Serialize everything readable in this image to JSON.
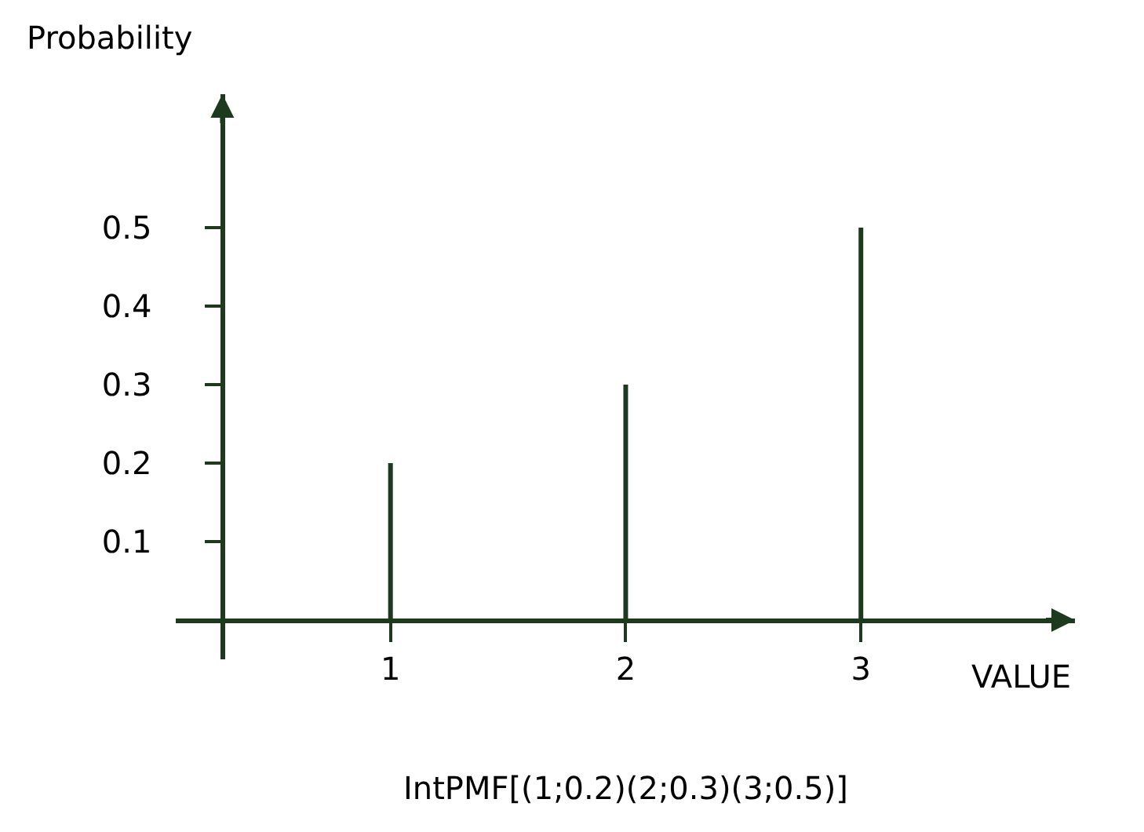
{
  "chart_data": {
    "type": "bar",
    "x": [
      1,
      2,
      3
    ],
    "values": [
      0.2,
      0.3,
      0.5
    ],
    "color": "#1e3a1e",
    "xlim": [
      0.087,
      3.91
    ],
    "ylim": [
      -0.05,
      0.67
    ],
    "xticks": [
      1,
      2,
      3
    ],
    "yticks": [
      0.1,
      0.2,
      0.3,
      0.4,
      0.5
    ],
    "xlabel": "VALUE",
    "ylabel": "Probability",
    "annotations": [
      "IntPMF[(1;0.2)(2;0.3)(3;0.5)]"
    ]
  }
}
